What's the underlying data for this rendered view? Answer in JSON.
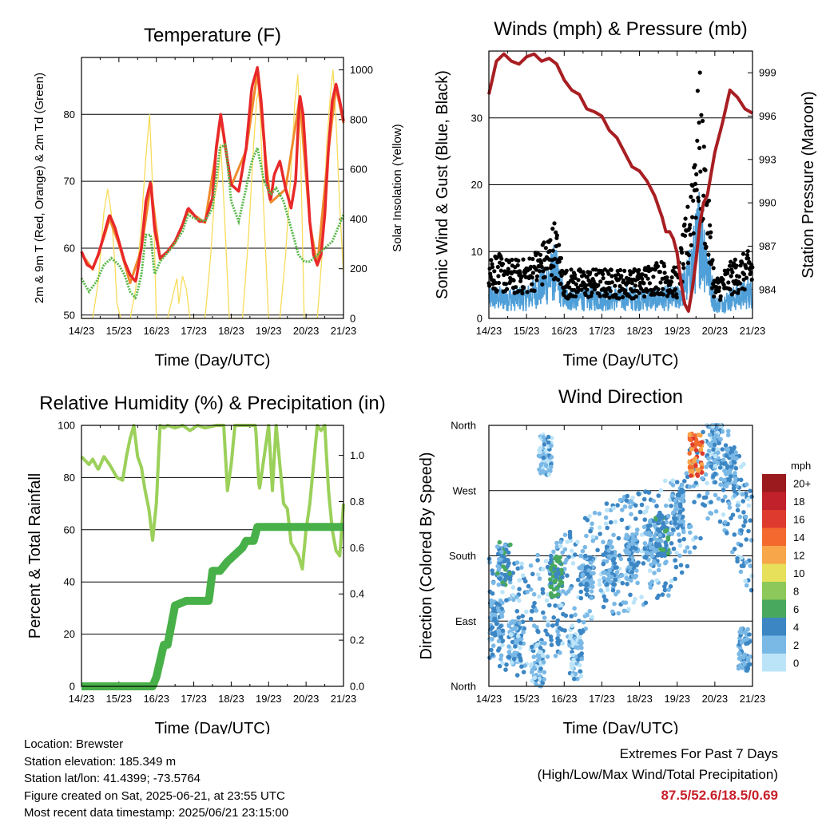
{
  "chart_data": [
    {
      "id": "temperature",
      "type": "line",
      "title": "Temperature (F)",
      "xlabel": "Time (Day/UTC)",
      "ylabel": "2m & 9m T (Red, Orange) & 2m Td (Green)",
      "ylabel_right": "Solar Insolation (Yellow)",
      "x_ticks": [
        "14/23",
        "15/23",
        "16/23",
        "17/23",
        "18/23",
        "19/23",
        "20/23",
        "21/23"
      ],
      "ylim": [
        49.5,
        88.5
      ],
      "y_ticks": [
        50,
        60,
        70,
        80
      ],
      "ylim_right": [
        0,
        1050
      ],
      "y_ticks_right": [
        0,
        200,
        400,
        600,
        800,
        1000
      ],
      "grid": true,
      "series": [
        {
          "name": "2m T",
          "color": "#e8282a",
          "axis": "left",
          "x": [
            0,
            0.15,
            0.3,
            0.45,
            0.6,
            0.75,
            0.9,
            1.0,
            1.15,
            1.3,
            1.45,
            1.6,
            1.72,
            1.85,
            1.95,
            2.1,
            2.3,
            2.5,
            2.7,
            2.85,
            3.0,
            3.15,
            3.3,
            3.5,
            3.6,
            3.72,
            3.85,
            4.0,
            4.2,
            4.4,
            4.55,
            4.7,
            4.8,
            4.88,
            4.95,
            5.05,
            5.15,
            5.3,
            5.45,
            5.6,
            5.72,
            5.83,
            5.92,
            6.0,
            6.1,
            6.2,
            6.3,
            6.4,
            6.5,
            6.6,
            6.7,
            6.8,
            6.9,
            7.0
          ],
          "values": [
            59.5,
            57.5,
            57,
            59,
            62,
            65,
            63,
            61,
            58,
            56,
            55,
            60,
            67,
            70,
            63,
            58.5,
            59.5,
            61,
            63.5,
            66,
            65,
            64,
            64,
            67.5,
            75,
            80,
            75,
            69.5,
            68.5,
            75,
            84,
            87,
            82,
            76,
            70,
            67,
            71,
            73,
            69,
            66,
            70,
            83,
            80,
            73,
            64,
            59,
            57.5,
            59,
            65,
            75,
            82,
            84.5,
            82,
            79
          ]
        },
        {
          "name": "9m T",
          "color": "#f08a2c",
          "axis": "left",
          "x": [
            0,
            0.3,
            0.6,
            0.75,
            1.0,
            1.3,
            1.6,
            1.85,
            2.1,
            2.5,
            2.85,
            3.3,
            3.6,
            3.72,
            4.0,
            4.4,
            4.7,
            4.88,
            5.05,
            5.45,
            5.83,
            6.1,
            6.3,
            6.6,
            6.8,
            7.0
          ],
          "values": [
            59.2,
            56.8,
            61.6,
            64.4,
            60.6,
            54.8,
            59.8,
            69.5,
            58.3,
            60.8,
            65.6,
            63.8,
            74.5,
            79.4,
            69.3,
            74.6,
            86.3,
            75.6,
            66.8,
            68.8,
            82.4,
            63.8,
            57.4,
            74.7,
            84.0,
            78.7
          ]
        },
        {
          "name": "2m Td",
          "color": "#58b848",
          "axis": "left",
          "x": [
            0,
            0.2,
            0.4,
            0.6,
            0.8,
            1.0,
            1.15,
            1.3,
            1.45,
            1.6,
            1.72,
            1.85,
            1.95,
            2.1,
            2.4,
            2.7,
            2.85,
            3.0,
            3.3,
            3.5,
            3.7,
            3.85,
            4.0,
            4.2,
            4.4,
            4.55,
            4.7,
            4.88,
            5.05,
            5.2,
            5.4,
            5.6,
            5.8,
            5.95,
            6.1,
            6.3,
            6.5,
            6.7,
            6.85,
            7.0
          ],
          "values": [
            55.5,
            53.5,
            55,
            57.5,
            58.5,
            57.5,
            56,
            53.5,
            52.5,
            56,
            62,
            62,
            56,
            58,
            60,
            62.5,
            65,
            64.5,
            64,
            66,
            75,
            75.5,
            67,
            64,
            69,
            73,
            75,
            70,
            68,
            69,
            67,
            63,
            59,
            58,
            58,
            59,
            60,
            61,
            63,
            65
          ]
        },
        {
          "name": "Solar Insolation",
          "color": "#f8dc5a",
          "axis": "right",
          "x": [
            0,
            0.3,
            0.45,
            0.6,
            0.7,
            0.8,
            0.9,
            0.95,
            1.05,
            1.3,
            1.45,
            1.6,
            1.72,
            1.82,
            1.88,
            1.95,
            2.0,
            2.3,
            2.5,
            2.55,
            2.6,
            2.7,
            2.8,
            2.9,
            3.3,
            3.45,
            3.55,
            3.65,
            3.72,
            3.8,
            3.95,
            4.3,
            4.45,
            4.6,
            4.68,
            4.75,
            4.85,
            5.0,
            5.3,
            5.45,
            5.6,
            5.7,
            5.78,
            5.85,
            5.95,
            6.3,
            6.45,
            6.55,
            6.65,
            6.72,
            6.8,
            6.9,
            7.0
          ],
          "values": [
            0,
            0,
            150,
            430,
            520,
            420,
            200,
            60,
            0,
            0,
            120,
            380,
            650,
            820,
            600,
            300,
            0,
            0,
            130,
            160,
            60,
            170,
            120,
            0,
            0,
            250,
            480,
            560,
            700,
            480,
            0,
            0,
            300,
            700,
            880,
            930,
            500,
            0,
            0,
            250,
            600,
            870,
            980,
            700,
            0,
            0,
            300,
            700,
            900,
            1000,
            800,
            450,
            180
          ]
        }
      ]
    },
    {
      "id": "winds",
      "type": "scatter",
      "title": "Winds (mph) & Pressure (mb)",
      "xlabel": "Time (Day/UTC)",
      "ylabel": "Sonic Wind & Gust (Blue, Black)",
      "ylabel_right": "Station Pressure (Maroon)",
      "x_ticks": [
        "14/23",
        "15/23",
        "16/23",
        "17/23",
        "18/23",
        "19/23",
        "20/23",
        "21/23"
      ],
      "ylim": [
        0,
        40
      ],
      "y_ticks": [
        0,
        10,
        20,
        30
      ],
      "ylim_right": [
        982,
        1000.5
      ],
      "y_ticks_right": [
        984,
        987,
        990,
        993,
        996,
        999
      ],
      "grid": true,
      "series": [
        {
          "name": "Sonic Wind",
          "color": "#4f9fd8",
          "axis": "left",
          "x": [
            0,
            0.5,
            1.0,
            1.5,
            1.75,
            2.0,
            2.5,
            3.0,
            3.5,
            4.0,
            4.5,
            5.0,
            5.3,
            5.5,
            5.6,
            5.7,
            6.0,
            6.5,
            7.0
          ],
          "values": [
            3,
            3,
            3,
            5,
            7,
            3,
            3,
            3,
            3,
            3,
            3,
            3,
            6,
            10,
            13,
            11,
            2,
            3,
            4
          ]
        },
        {
          "name": "Gust",
          "color": "#000000",
          "axis": "left",
          "x": [
            0,
            0.5,
            1.0,
            1.5,
            1.75,
            2.0,
            2.5,
            3.0,
            3.5,
            4.0,
            4.5,
            5.0,
            5.3,
            5.5,
            5.6,
            5.7,
            6.0,
            6.5,
            7.0
          ],
          "values": [
            7,
            6,
            6,
            8,
            10,
            5,
            5,
            5,
            5,
            5,
            6,
            5,
            12,
            22,
            25,
            19,
            4,
            6,
            7
          ]
        },
        {
          "name": "Station Pressure",
          "color": "#a81e22",
          "axis": "right",
          "x": [
            0,
            0.2,
            0.4,
            0.6,
            0.8,
            1.0,
            1.2,
            1.4,
            1.6,
            1.8,
            2.0,
            2.2,
            2.4,
            2.6,
            2.8,
            3.0,
            3.2,
            3.4,
            3.6,
            3.8,
            4.0,
            4.2,
            4.4,
            4.6,
            4.7,
            4.8,
            4.9,
            5.0,
            5.1,
            5.2,
            5.3,
            5.4,
            5.5,
            5.6,
            5.7,
            5.8,
            5.9,
            6.0,
            6.2,
            6.4,
            6.6,
            6.8,
            7.0
          ],
          "values": [
            997.5,
            999.8,
            1000.3,
            999.8,
            999.6,
            1000.1,
            1000.3,
            999.8,
            1000.0,
            999.6,
            998.5,
            997.8,
            997.5,
            996.5,
            996.3,
            996.0,
            995.0,
            994.5,
            993.5,
            992.5,
            992.2,
            991.5,
            990.5,
            989.0,
            988.0,
            988.0,
            987.5,
            986.5,
            984.5,
            983.0,
            982.5,
            984.0,
            986.0,
            988.5,
            990.0,
            990.5,
            992.0,
            993.5,
            995.5,
            997.8,
            997.3,
            996.5,
            996.2
          ]
        }
      ]
    },
    {
      "id": "humidity",
      "type": "line",
      "title": "Relative Humidity (%) & Precipitation (in)",
      "xlabel": "Time (Day/UTC)",
      "ylabel": "Percent & Total Rainfall",
      "x_ticks": [
        "14/23",
        "15/23",
        "16/23",
        "17/23",
        "18/23",
        "19/23",
        "20/23",
        "21/23"
      ],
      "ylim": [
        0,
        100
      ],
      "y_ticks": [
        0,
        20,
        40,
        60,
        80,
        100
      ],
      "ylim_right": [
        0,
        1.13
      ],
      "y_ticks_right": [
        "0.0",
        "0.2",
        "0.4",
        "0.6",
        "0.8",
        "1.0"
      ],
      "grid": true,
      "series": [
        {
          "name": "Relative Humidity",
          "color": "#9bd05a",
          "axis": "left",
          "x": [
            0,
            0.2,
            0.3,
            0.45,
            0.6,
            0.75,
            0.95,
            1.1,
            1.2,
            1.3,
            1.4,
            1.5,
            1.6,
            1.7,
            1.8,
            1.9,
            2.0,
            2.1,
            2.2,
            2.3,
            2.5,
            2.7,
            2.9,
            3.1,
            3.3,
            3.6,
            3.8,
            3.9,
            4.0,
            4.1,
            4.3,
            4.5,
            4.65,
            4.75,
            4.85,
            5.0,
            5.1,
            5.2,
            5.3,
            5.4,
            5.5,
            5.6,
            5.8,
            5.9,
            6.0,
            6.1,
            6.3,
            6.4,
            6.5,
            6.6,
            6.7,
            6.8,
            6.9,
            7.0
          ],
          "values": [
            88,
            85,
            87,
            83,
            88,
            85,
            80,
            79,
            88,
            95,
            100,
            88,
            84,
            75,
            68,
            56,
            70,
            100,
            99,
            100,
            99,
            100,
            98,
            100,
            99,
            100,
            100,
            75,
            85,
            100,
            100,
            100,
            100,
            75,
            85,
            100,
            75,
            100,
            85,
            70,
            68,
            55,
            50,
            45,
            60,
            70,
            100,
            98,
            100,
            75,
            60,
            52,
            50,
            70
          ]
        },
        {
          "name": "Total Rainfall",
          "color": "#48b048",
          "axis": "right",
          "x": [
            0,
            1.9,
            2.0,
            2.2,
            2.3,
            2.5,
            2.8,
            3.4,
            3.5,
            3.7,
            3.9,
            4.3,
            4.4,
            4.6,
            4.7,
            4.9,
            5.0,
            7.0
          ],
          "values": [
            0,
            0,
            0.04,
            0.18,
            0.18,
            0.35,
            0.37,
            0.37,
            0.5,
            0.5,
            0.54,
            0.6,
            0.63,
            0.63,
            0.69,
            0.69,
            0.69,
            0.69
          ]
        }
      ]
    },
    {
      "id": "wind_direction",
      "type": "scatter",
      "title": "Wind Direction",
      "xlabel": "Time (Day/UTC)",
      "ylabel": "Direction (Colored By Speed)",
      "x_ticks": [
        "14/23",
        "15/23",
        "16/23",
        "17/23",
        "18/23",
        "19/23",
        "20/23",
        "21/23"
      ],
      "y_ticks": [
        "North",
        "East",
        "South",
        "West",
        "North"
      ],
      "ylim": [
        0,
        360
      ],
      "grid": true,
      "legend": {
        "title": "mph",
        "position": "right",
        "labels": [
          "20+",
          "18",
          "16",
          "14",
          "12",
          "10",
          "8",
          "6",
          "4",
          "2",
          "0"
        ],
        "colors": [
          "#9a1a1e",
          "#c0212a",
          "#de3a2e",
          "#f46a2e",
          "#f8a64a",
          "#e6e05a",
          "#8cc85a",
          "#48a85e",
          "#3c86c4",
          "#7ab8e6",
          "#bce4f8"
        ]
      },
      "clusters": [
        {
          "x": 0.2,
          "dir": 90,
          "speed": 3
        },
        {
          "x": 0.4,
          "dir": 170,
          "speed": 4
        },
        {
          "x": 0.7,
          "dir": 60,
          "speed": 2
        },
        {
          "x": 1.3,
          "dir": 30,
          "speed": 2
        },
        {
          "x": 1.5,
          "dir": 320,
          "speed": 2
        },
        {
          "x": 1.8,
          "dir": 150,
          "speed": 5
        },
        {
          "x": 2.3,
          "dir": 40,
          "speed": 2
        },
        {
          "x": 2.6,
          "dir": 150,
          "speed": 3
        },
        {
          "x": 3.2,
          "dir": 170,
          "speed": 3
        },
        {
          "x": 3.8,
          "dir": 180,
          "speed": 3
        },
        {
          "x": 4.3,
          "dir": 200,
          "speed": 3
        },
        {
          "x": 4.6,
          "dir": 210,
          "speed": 4
        },
        {
          "x": 5.0,
          "dir": 240,
          "speed": 3
        },
        {
          "x": 5.5,
          "dir": 320,
          "speed": 14
        },
        {
          "x": 6.0,
          "dir": 330,
          "speed": 2
        },
        {
          "x": 6.4,
          "dir": 300,
          "speed": 3
        },
        {
          "x": 6.8,
          "dir": 50,
          "speed": 3
        }
      ]
    }
  ],
  "info": {
    "location": "Location: Brewster",
    "elevation": "Station elevation: 185.349 m",
    "latlon": "Station lat/lon: 41.4399; -73.5764",
    "created": "Figure created on Sat, 2025-06-21, at 23:55 UTC",
    "timestamp": "Most recent data timestamp: 2025/06/21 23:15:00"
  },
  "extremes": {
    "line1": "Extremes For Past 7 Days",
    "line2": "(High/Low/Max Wind/Total Precipitation)",
    "value": "87.5/52.6/18.5/0.69"
  }
}
